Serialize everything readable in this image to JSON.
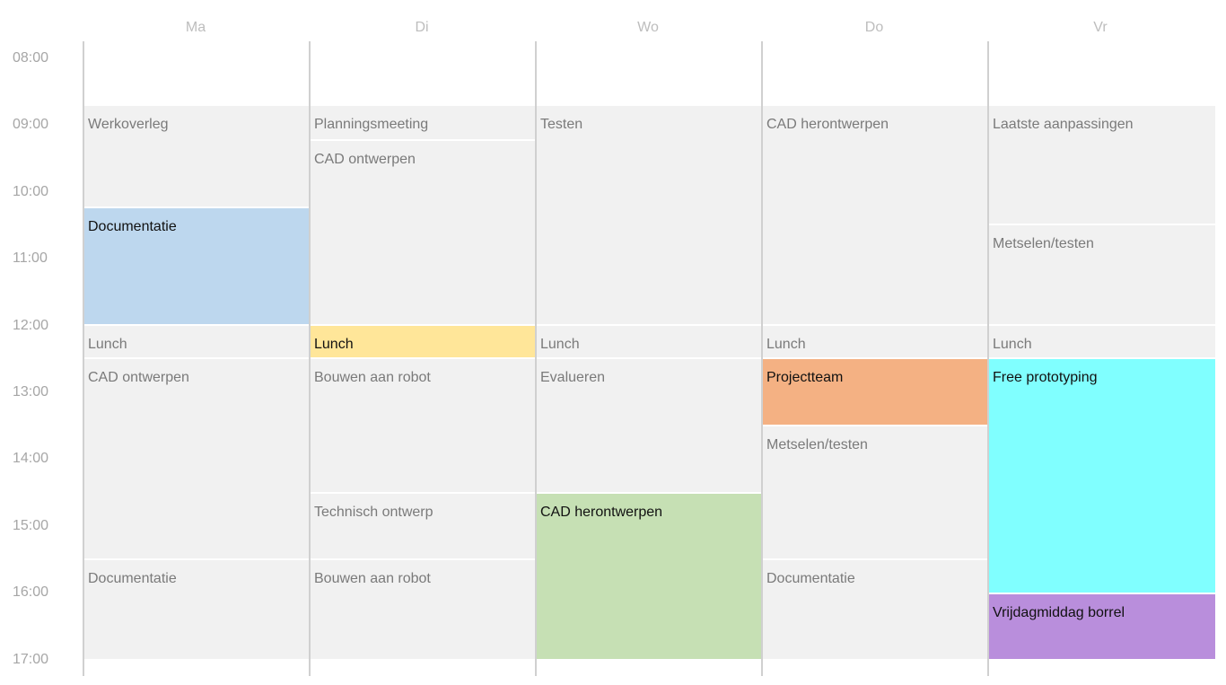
{
  "days": [
    {
      "label": "Ma",
      "events": [
        {
          "title": "Werkoverleg",
          "start": "09:00",
          "end": "10:30",
          "highlight": false
        },
        {
          "title": "Documentatie",
          "start": "10:30",
          "end": "12:15",
          "highlight": true,
          "color": "#bdd7ee"
        },
        {
          "title": "Lunch",
          "start": "12:15",
          "end": "12:45",
          "highlight": false
        },
        {
          "title": "CAD ontwerpen",
          "start": "12:45",
          "end": "15:45",
          "highlight": false
        },
        {
          "title": "Documentatie",
          "start": "15:45",
          "end": "17:15",
          "highlight": false
        }
      ]
    },
    {
      "label": "Di",
      "events": [
        {
          "title": "Planningsmeeting",
          "start": "09:00",
          "end": "09:30",
          "highlight": false
        },
        {
          "title": "CAD ontwerpen",
          "start": "09:30",
          "end": "12:15",
          "highlight": false
        },
        {
          "title": "Lunch",
          "start": "12:15",
          "end": "12:45",
          "highlight": true,
          "color": "#ffe699"
        },
        {
          "title": "Bouwen aan robot",
          "start": "12:45",
          "end": "14:45",
          "highlight": false
        },
        {
          "title": "Technisch ontwerp",
          "start": "14:45",
          "end": "15:45",
          "highlight": false
        },
        {
          "title": "Bouwen aan robot",
          "start": "15:45",
          "end": "17:15",
          "highlight": false
        }
      ]
    },
    {
      "label": "Wo",
      "events": [
        {
          "title": "Testen",
          "start": "09:00",
          "end": "12:15",
          "highlight": false
        },
        {
          "title": "Lunch",
          "start": "12:15",
          "end": "12:45",
          "highlight": false
        },
        {
          "title": "Evalueren",
          "start": "12:45",
          "end": "14:45",
          "highlight": false
        },
        {
          "title": "CAD herontwerpen",
          "start": "14:45",
          "end": "17:15",
          "highlight": true,
          "color": "#c6e0b4"
        }
      ]
    },
    {
      "label": "Do",
      "events": [
        {
          "title": "CAD herontwerpen",
          "start": "09:00",
          "end": "12:15",
          "highlight": false
        },
        {
          "title": "Lunch",
          "start": "12:15",
          "end": "12:45",
          "highlight": false
        },
        {
          "title": "Projectteam",
          "start": "12:45",
          "end": "13:45",
          "highlight": true,
          "color": "#f4b183"
        },
        {
          "title": "Metselen/testen",
          "start": "13:45",
          "end": "15:45",
          "highlight": false
        },
        {
          "title": "Documentatie",
          "start": "15:45",
          "end": "17:15",
          "highlight": false
        }
      ]
    },
    {
      "label": "Vr",
      "events": [
        {
          "title": "Laatste aanpassingen",
          "start": "09:00",
          "end": "10:45",
          "highlight": false
        },
        {
          "title": "Metselen/testen",
          "start": "10:45",
          "end": "12:15",
          "highlight": false
        },
        {
          "title": "Lunch",
          "start": "12:15",
          "end": "12:45",
          "highlight": false
        },
        {
          "title": "Free prototyping",
          "start": "12:45",
          "end": "16:15",
          "highlight": true,
          "color": "#80ffff"
        },
        {
          "title": "Vrijdagmiddag borrel",
          "start": "16:15",
          "end": "17:15",
          "highlight": true,
          "color": "#b98edc"
        }
      ]
    }
  ],
  "times": [
    "08:00",
    "09:00",
    "10:00",
    "11:00",
    "12:00",
    "13:00",
    "14:00",
    "15:00",
    "16:00",
    "17:00"
  ],
  "colors": {
    "event_default": "#f1f1f1",
    "event_text": "#7a7a7a",
    "header_text": "#bdbdbd",
    "time_text": "#a6a6a6"
  }
}
